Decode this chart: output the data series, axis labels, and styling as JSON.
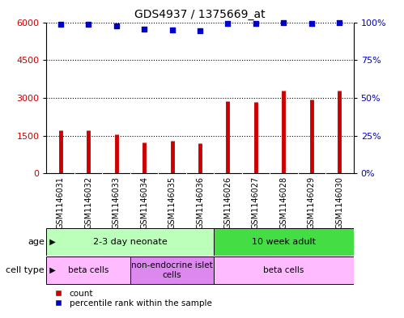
{
  "title": "GDS4937 / 1375669_at",
  "samples": [
    "GSM1146031",
    "GSM1146032",
    "GSM1146033",
    "GSM1146034",
    "GSM1146035",
    "GSM1146036",
    "GSM1146026",
    "GSM1146027",
    "GSM1146028",
    "GSM1146029",
    "GSM1146030"
  ],
  "counts": [
    1700,
    1720,
    1560,
    1230,
    1280,
    1200,
    2880,
    2840,
    3280,
    2920,
    3280
  ],
  "percentiles": [
    98.5,
    98.5,
    97.5,
    95.5,
    95.0,
    94.5,
    99.0,
    99.0,
    99.5,
    99.0,
    99.5
  ],
  "ylim_left": [
    0,
    6000
  ],
  "ylim_right": [
    0,
    100
  ],
  "yticks_left": [
    0,
    1500,
    3000,
    4500,
    6000
  ],
  "yticks_right": [
    0,
    25,
    50,
    75,
    100
  ],
  "bar_color": "#cc0000",
  "scatter_color": "#0000cc",
  "age_groups": [
    {
      "label": "2-3 day neonate",
      "start": 0,
      "end": 6,
      "color": "#bbffbb"
    },
    {
      "label": "10 week adult",
      "start": 6,
      "end": 11,
      "color": "#44dd44"
    }
  ],
  "cell_type_groups": [
    {
      "label": "beta cells",
      "start": 0,
      "end": 3,
      "color": "#ffbbff"
    },
    {
      "label": "non-endocrine islet\ncells",
      "start": 3,
      "end": 6,
      "color": "#dd88ee"
    },
    {
      "label": "beta cells",
      "start": 6,
      "end": 11,
      "color": "#ffbbff"
    }
  ],
  "legend_count_label": "count",
  "legend_pct_label": "percentile rank within the sample",
  "background_color": "#ffffff",
  "label_bg_color": "#cccccc",
  "age_label": "age",
  "cell_type_label": "cell type",
  "title_fontsize": 10,
  "tick_fontsize": 8,
  "label_fontsize": 7,
  "annot_fontsize": 8
}
